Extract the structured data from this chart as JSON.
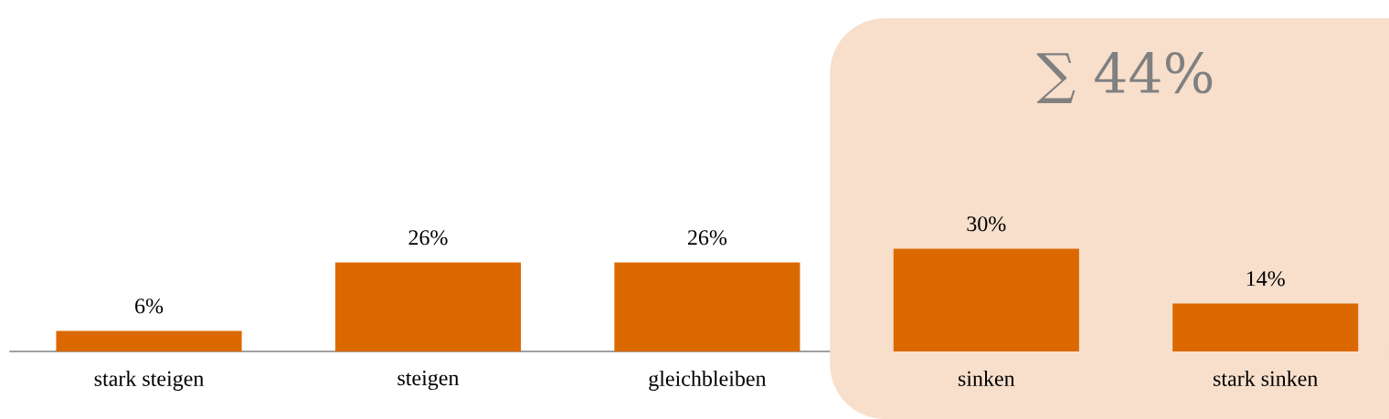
{
  "chart_data": {
    "type": "bar",
    "categories": [
      "stark steigen",
      "steigen",
      "gleichbleiben",
      "sinken",
      "stark sinken"
    ],
    "values": [
      6,
      26,
      26,
      30,
      14
    ],
    "value_labels": [
      "6%",
      "26%",
      "26%",
      "30%",
      "14%"
    ],
    "color": "#dc6900",
    "bands": [
      {
        "axis": "x",
        "from": "sinken",
        "to": "stark sinken",
        "label": "∑ 44%",
        "color": "#f7dfcc"
      }
    ]
  }
}
